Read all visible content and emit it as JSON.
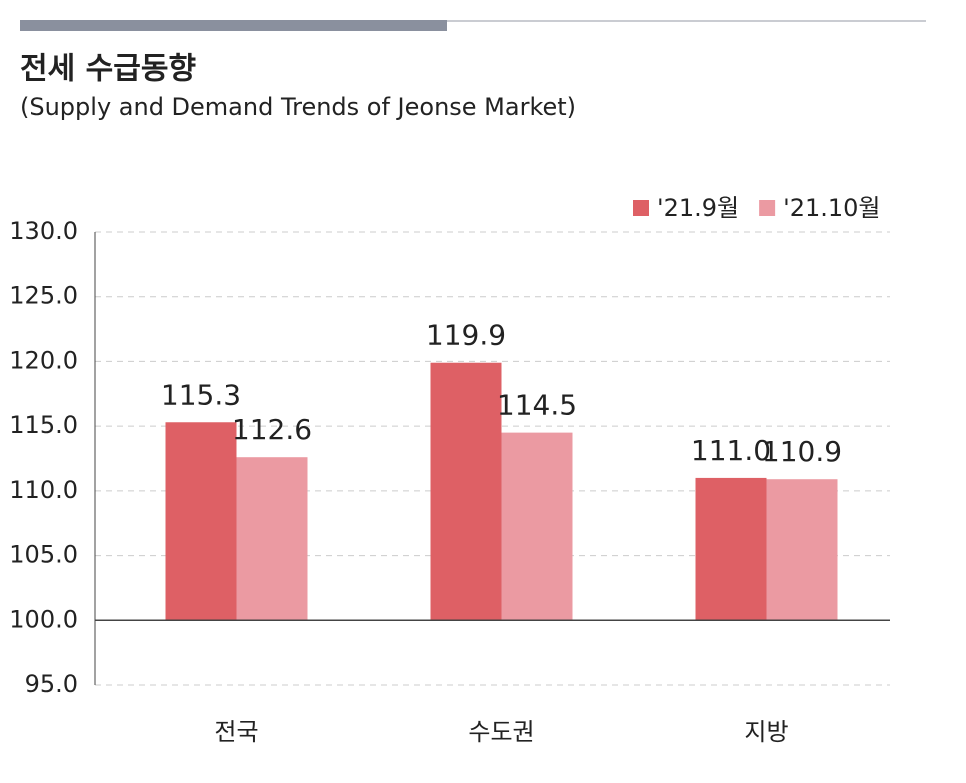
{
  "chart_data": {
    "type": "bar",
    "title": "전세 수급동향",
    "subtitle": "(Supply and Demand Trends of Jeonse Market)",
    "categories": [
      "전국",
      "수도권",
      "지방"
    ],
    "series": [
      {
        "name": "'21.9월",
        "color": "#de6065",
        "values": [
          115.3,
          119.9,
          111.0
        ],
        "value_labels": [
          "115.3",
          "119.9",
          "111.0"
        ]
      },
      {
        "name": "'21.10월",
        "color": "#eb9aa2",
        "values": [
          112.6,
          114.5,
          110.9
        ],
        "value_labels": [
          "112.6",
          "114.5",
          "110.9"
        ]
      }
    ],
    "baseline": 100,
    "ylim": [
      95,
      130
    ],
    "yticks": [
      {
        "value": 95,
        "label": "95.0"
      },
      {
        "value": 100,
        "label": "100.0"
      },
      {
        "value": 105,
        "label": "105.0"
      },
      {
        "value": 110,
        "label": "110.0"
      },
      {
        "value": 115,
        "label": "115.0"
      },
      {
        "value": 120,
        "label": "120.0"
      },
      {
        "value": 125,
        "label": "125.0"
      },
      {
        "value": 130,
        "label": "130.0"
      }
    ],
    "grid": true,
    "legend": "top-right"
  }
}
